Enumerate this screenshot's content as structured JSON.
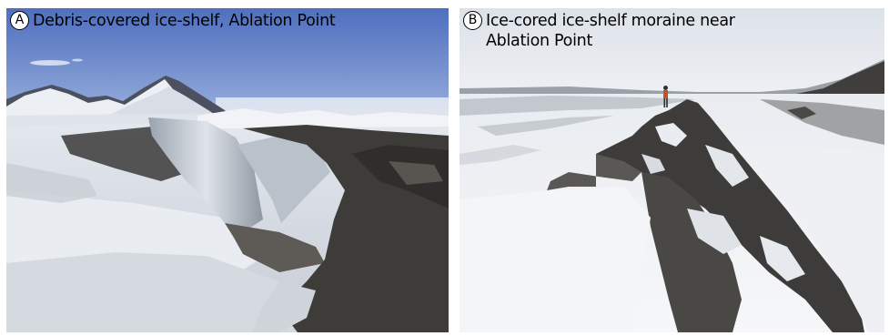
{
  "panels": [
    {
      "letter": "A",
      "caption": "Debris-covered ice-shelf, Ablation Point",
      "colors": {
        "sky": "#5f7fc6",
        "ice": "#d9dee6",
        "debris": "#3e3c39",
        "mountain_shadow": "#4a4e57"
      }
    },
    {
      "letter": "B",
      "caption": "Ice-cored ice-shelf moraine near Ablation Point",
      "colors": {
        "sky": "#e6e9ee",
        "snow": "#f2f4f7",
        "moraine": "#3d3c3a",
        "figure_jacket": "#c8501f"
      }
    }
  ]
}
